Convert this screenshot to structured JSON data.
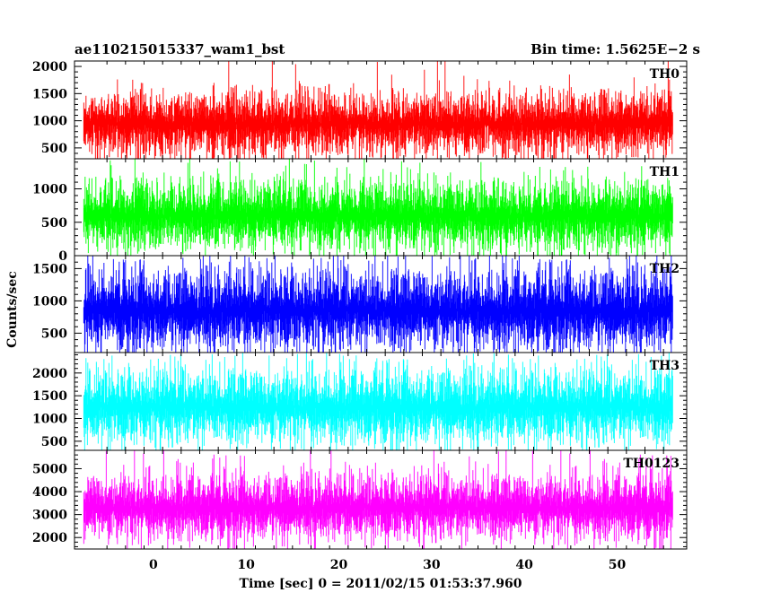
{
  "header": {
    "title": "ae110215015337_wam1_bst",
    "bin_time": "Bin time: 1.5625E−2 s"
  },
  "chart_data": {
    "type": "line",
    "title": "ae110215015337_wam1_bst",
    "subtitle": "Bin time: 1.5625E−2 s",
    "xlabel": "Time [sec] 0 = 2011/02/15 01:53:37.960",
    "ylabel": "Counts/sec",
    "xlim": [
      -8.5,
      57.5
    ],
    "x_data_range": [
      -7.5,
      56
    ],
    "x_ticks": [
      0,
      10,
      20,
      30,
      40,
      50
    ],
    "x_tick_labels": [
      "0",
      "10",
      "20",
      "30",
      "40",
      "50"
    ],
    "bin_time": 0.015625,
    "panels": [
      {
        "name": "TH0",
        "color": "#ff0000",
        "ylim": [
          300,
          2100
        ],
        "y_ticks": [
          500,
          1000,
          1500,
          2000
        ],
        "y_tick_labels": [
          "500",
          "1000",
          "1500",
          "2000"
        ],
        "baseline": 250,
        "mean": 950,
        "typical_max": 1500,
        "peak_max": 2100,
        "typical_min": 450
      },
      {
        "name": "TH1",
        "color": "#00ff00",
        "ylim": [
          0,
          1450
        ],
        "y_ticks": [
          0,
          500,
          1000
        ],
        "y_tick_labels": [
          "0",
          "500",
          "1000"
        ],
        "mean": 600,
        "typical_max": 1100,
        "peak_max": 1400,
        "typical_min": 150
      },
      {
        "name": "TH2",
        "color": "#0000ff",
        "ylim": [
          200,
          1700
        ],
        "y_ticks": [
          500,
          1000,
          1500
        ],
        "y_tick_labels": [
          "500",
          "1000",
          "1500"
        ],
        "mean": 850,
        "typical_max": 1450,
        "peak_max": 1700,
        "typical_min": 300
      },
      {
        "name": "TH3",
        "color": "#00ffff",
        "ylim": [
          300,
          2450
        ],
        "y_ticks": [
          500,
          1000,
          1500,
          2000
        ],
        "y_tick_labels": [
          "500",
          "1000",
          "1500",
          "2000"
        ],
        "mean": 1250,
        "typical_max": 2050,
        "peak_max": 2400,
        "typical_min": 550
      },
      {
        "name": "TH0123",
        "color": "#ff00ff",
        "ylim": [
          1500,
          5800
        ],
        "y_ticks": [
          2000,
          3000,
          4000,
          5000
        ],
        "y_tick_labels": [
          "2000",
          "3000",
          "4000",
          "5000"
        ],
        "mean": 3300,
        "typical_max": 4700,
        "peak_max": 5800,
        "typical_min": 2100
      }
    ],
    "grid": false,
    "legend": "none"
  }
}
